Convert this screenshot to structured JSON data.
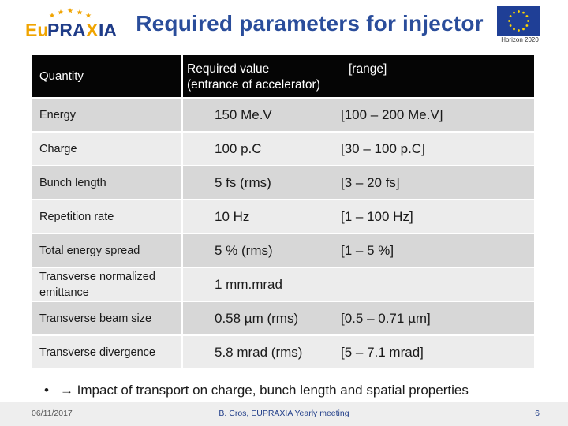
{
  "header": {
    "logo_text": "EuPRAXIA",
    "title": "Required parameters for injector",
    "eu_caption": "Horizon 2020"
  },
  "table": {
    "headers": {
      "quantity": "Quantity",
      "required_value": "Required value",
      "range": "[range]",
      "required_value_sub": "(entrance of accelerator)"
    },
    "rows": [
      {
        "quantity": "Energy",
        "value": "150 Me.V",
        "range": "[100 – 200 Me.V]"
      },
      {
        "quantity": "Charge",
        "value": "100 p.C",
        "range": "[30 – 100 p.C]"
      },
      {
        "quantity": "Bunch length",
        "value": "5 fs (rms)",
        "range": "[3 – 20 fs]"
      },
      {
        "quantity": "Repetition rate",
        "value": "10 Hz",
        "range": "[1 – 100 Hz]"
      },
      {
        "quantity": "Total energy spread",
        "value": "5 % (rms)",
        "range": "[1 – 5 %]"
      },
      {
        "quantity": "Transverse normalized emittance",
        "value": "1 mm.mrad",
        "range": ""
      },
      {
        "quantity": "Transverse beam size",
        "value": "0.58 µm (rms)",
        "range": "[0.5 – 0.71 µm]"
      },
      {
        "quantity": "Transverse divergence",
        "value": "5.8 mrad (rms)",
        "range": "[5 – 7.1 mrad]"
      }
    ]
  },
  "bullet": {
    "symbol": "•",
    "text": "→ Impact of transport on charge, bunch length and spatial properties"
  },
  "footer": {
    "date": "06/11/2017",
    "center": "B. Cros, EUPRAXIA Yearly meeting",
    "page": "6"
  },
  "colors": {
    "title": "#2a4d9b",
    "logo_orange": "#f0a400",
    "logo_blue": "#1f3c88",
    "eu_flag": "#1f3f96",
    "eu_stars": "#ffd700",
    "header_row": "#050505",
    "row_dark": "#d7d7d7",
    "row_light": "#ececec"
  }
}
